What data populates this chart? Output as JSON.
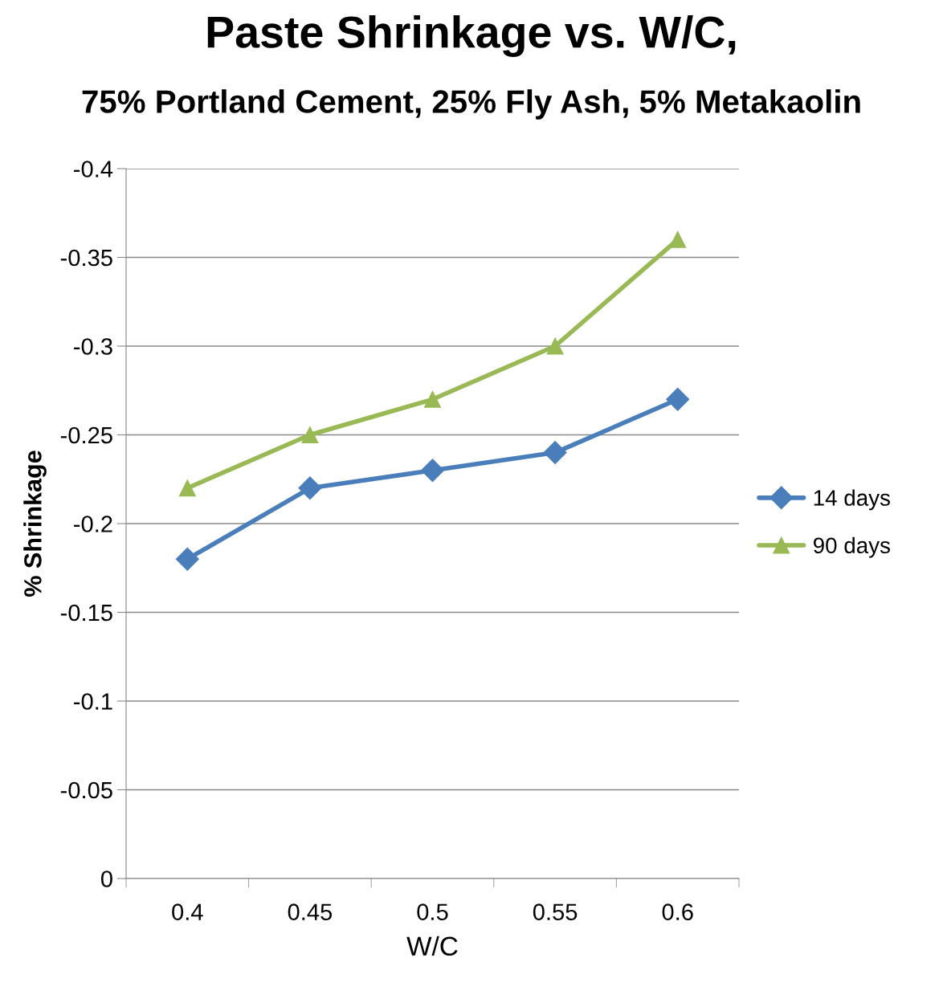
{
  "chart_data": {
    "type": "line",
    "title": "Paste Shrinkage vs. W/C,",
    "subtitle": "75% Portland Cement, 25% Fly Ash, 5% Metakaolin",
    "xlabel": "W/C",
    "ylabel": "% Shrinkage",
    "categories": [
      "0.4",
      "0.45",
      "0.5",
      "0.55",
      "0.6"
    ],
    "series": [
      {
        "name": "14 days",
        "color": "#4a7ebb",
        "marker": "diamond",
        "values": [
          -0.18,
          -0.22,
          -0.23,
          -0.24,
          -0.27
        ]
      },
      {
        "name": "90 days",
        "color": "#98b954",
        "marker": "triangle",
        "values": [
          -0.22,
          -0.25,
          -0.27,
          -0.3,
          -0.36
        ]
      }
    ],
    "ylim": [
      0,
      -0.4
    ],
    "yticks": [
      -0.4,
      -0.35,
      -0.3,
      -0.25,
      -0.2,
      -0.15,
      -0.1,
      -0.05,
      0
    ],
    "grid": "y",
    "legend": "right"
  }
}
